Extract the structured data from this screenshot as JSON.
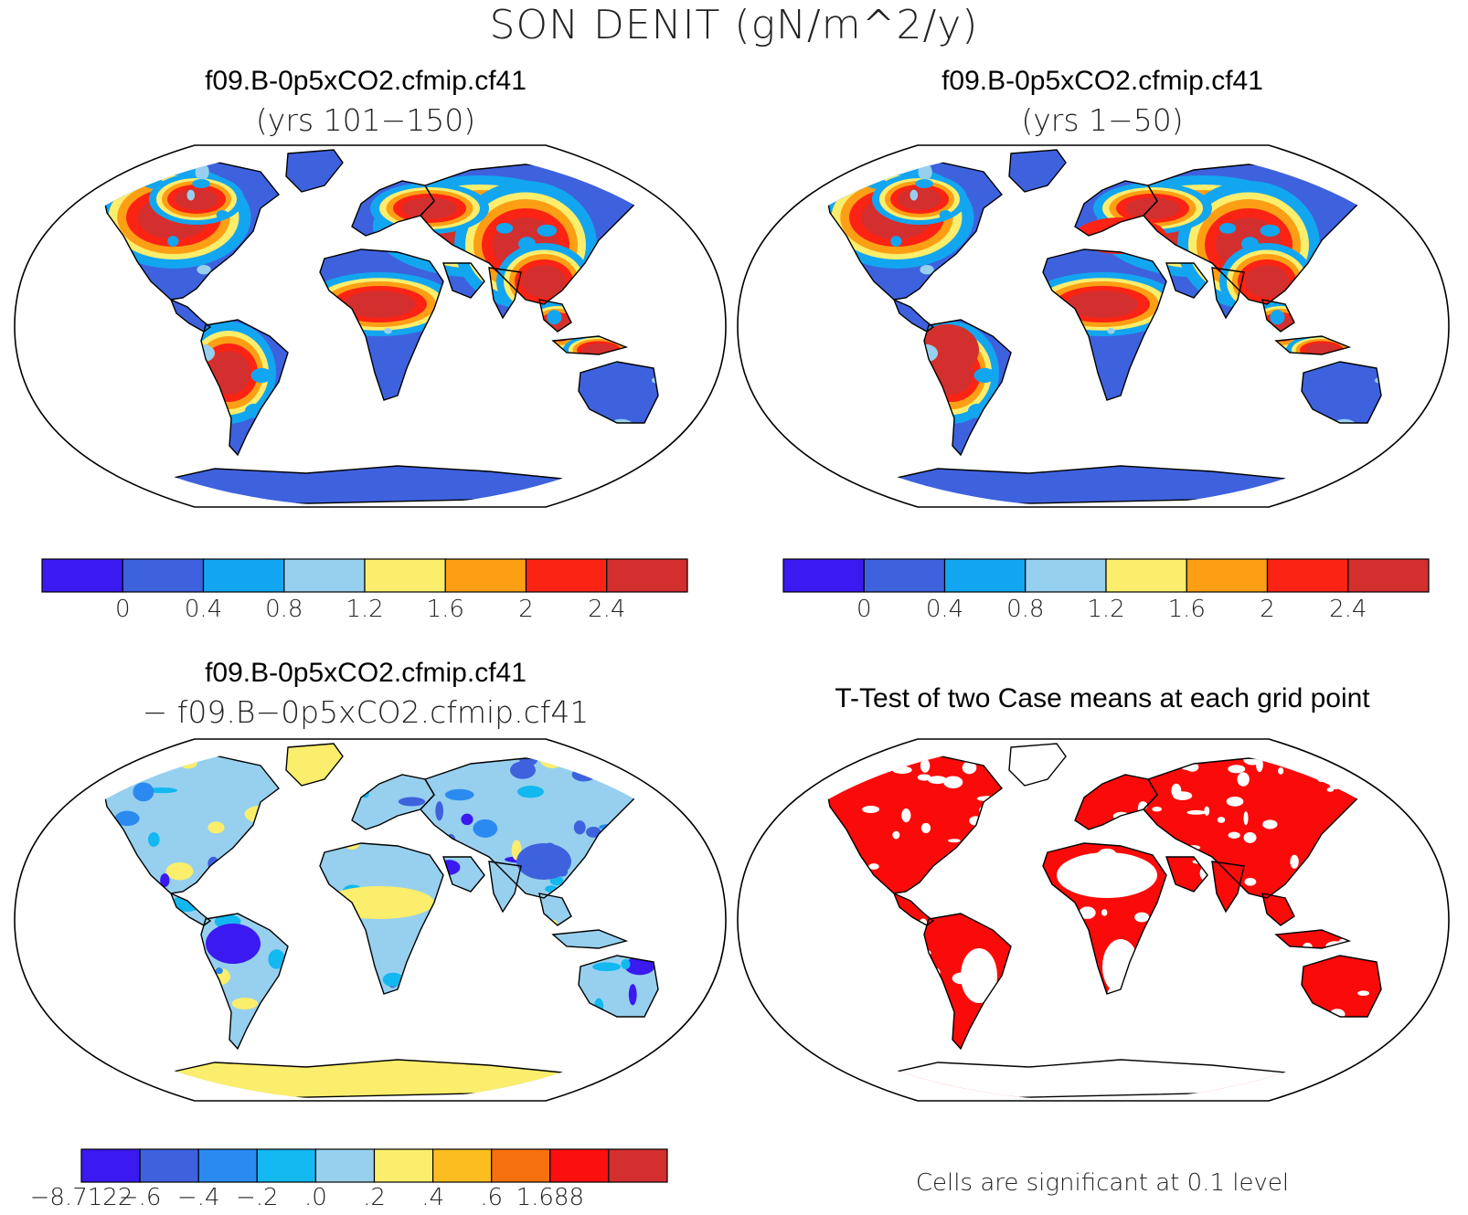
{
  "figure": {
    "title": "SON DENIT (gN/m^2/y)"
  },
  "panels": [
    {
      "id": "case1",
      "title": "f09.B-0p5xCO2.cfmip.cf41",
      "subtitle": "(yrs 101−150)"
    },
    {
      "id": "case2",
      "title": "f09.B-0p5xCO2.cfmip.cf41",
      "subtitle": "(yrs 1−50)"
    },
    {
      "id": "difference",
      "title": "f09.B-0p5xCO2.cfmip.cf41",
      "subtitle": "− f09.B−0p5xCO2.cfmip.cf41"
    },
    {
      "id": "ttest",
      "title": "T-Test of two Case means at each grid point",
      "footnote": "Cells are significant at 0.1 level"
    }
  ],
  "colorbars": {
    "main": {
      "colors": [
        "#3a1af0",
        "#3e62dd",
        "#13a6f0",
        "#96d0ee",
        "#fbee6c",
        "#fc9f14",
        "#fb2314",
        "#d42f2f"
      ],
      "ticks": [
        "0",
        "0.4",
        "0.8",
        "1.2",
        "1.6",
        "2",
        "2.4"
      ]
    },
    "diff": {
      "colors": [
        "#3a1af0",
        "#3e62dd",
        "#2b8af0",
        "#13b8f0",
        "#96d0ee",
        "#fbee6c",
        "#fbbd20",
        "#f7700f",
        "#fb1010",
        "#d42f2f"
      ],
      "ticks": [
        "−8.7122",
        "−.6",
        "−.4",
        "−.2",
        ".0",
        ".2",
        ".4",
        ".6",
        "1.688"
      ]
    }
  },
  "map_colors": {
    "ocean": "#ffffff",
    "coast": "#000000",
    "significant": "#fb0a0a"
  }
}
